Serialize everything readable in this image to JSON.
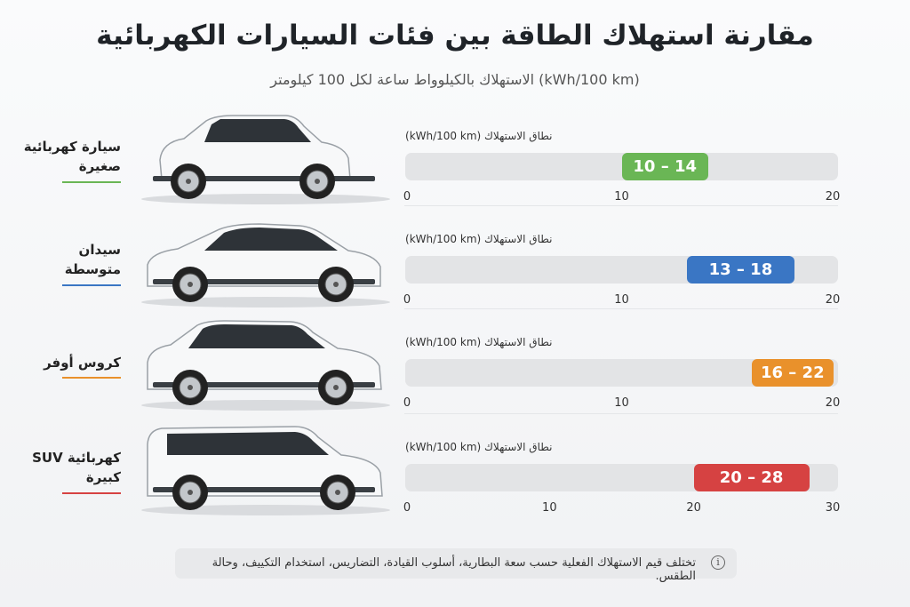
{
  "header": {
    "title": "مقارنة استهلاك الطاقة بين فئات السيارات الكهربائية",
    "subtitle": "الاستهلاك بالكيلوواط ساعة لكل 100 كيلومتر (kWh/100 km)"
  },
  "footer": {
    "note": "تختلف قيم الاستهلاك الفعلية حسب سعة البطارية، أسلوب القيادة، التضاريس، استخدام التكييف، وحالة الطقس.",
    "icon": "info-icon"
  },
  "chart_data": {
    "type": "bar",
    "title": "مقارنة استهلاك الطاقة بين فئات السيارات الكهربائية",
    "subtitle": "الاستهلاك بالكيلوواط ساعة لكل 100 كيلومتر (kWh/100 km)",
    "unit": "kWh/100 km",
    "series": [
      {
        "name": "سيارة كهربائية صغيرة",
        "label_lines": [
          "سيارة كهربائية",
          "صغيرة"
        ],
        "range_label": "نطاق الاستهلاك (kWh/100 km)",
        "min": 10,
        "max": 14,
        "value_label": "10 – 14",
        "color": "#6ab655",
        "axis": [
          0,
          20
        ],
        "ticks": [
          0,
          10,
          20
        ],
        "car_type": "hatchback"
      },
      {
        "name": "سيدان متوسطة",
        "label_lines": [
          "سيدان",
          "متوسطة"
        ],
        "range_label": "نطاق الاستهلاك (kWh/100 km)",
        "min": 13,
        "max": 18,
        "value_label": "13 – 18",
        "color": "#3a76c4",
        "axis": [
          0,
          20
        ],
        "ticks": [
          0,
          10,
          20
        ],
        "car_type": "sedan"
      },
      {
        "name": "كروس أوفر",
        "label_lines": [
          "كروس أوفر"
        ],
        "range_label": "نطاق الاستهلاك (kWh/100 km)",
        "min": 16,
        "max": 22,
        "value_label": "16 – 22",
        "color": "#e9912b",
        "axis": [
          0,
          20
        ],
        "ticks": [
          0,
          10,
          20
        ],
        "car_type": "crossover"
      },
      {
        "name": "SUV كهربائية كبيرة",
        "label_lines": [
          "SUV كهربائية",
          "كبيرة"
        ],
        "range_label": "نطاق الاستهلاك (kWh/100 km)",
        "min": 20,
        "max": 28,
        "value_label": "20 – 28",
        "color": "#d64242",
        "axis": [
          0,
          30
        ],
        "ticks": [
          0,
          10,
          20,
          30
        ],
        "car_type": "suv"
      }
    ]
  }
}
